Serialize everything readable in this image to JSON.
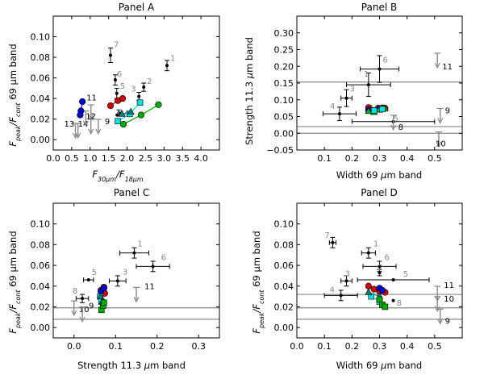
{
  "chart_data": [
    {
      "id": "A",
      "type": "scatter",
      "title": "Panel A",
      "xlabel": "F_30μm/F_18μm",
      "ylabel": "F_peak/F_cont 69 μm band",
      "xlim": [
        0,
        4.5
      ],
      "ylim": [
        -0.01,
        0.12
      ],
      "xticks": [
        "0.0",
        "0.5",
        "1.0",
        "1.5",
        "2.0",
        "2.5",
        "3.0",
        "3.5",
        "4.0"
      ],
      "yticks": [
        "0.00",
        "0.02",
        "0.04",
        "0.06",
        "0.08",
        "0.10"
      ],
      "xtickvals": [
        0,
        0.5,
        1,
        1.5,
        2,
        2.5,
        3,
        3.5,
        4
      ],
      "ytickvals": [
        0,
        0.02,
        0.04,
        0.06,
        0.08,
        0.1
      ],
      "hlines": [],
      "points": [
        {
          "label": "1",
          "x": 3.08,
          "y": 0.072,
          "xerr": 0.0,
          "yerr": 0.005,
          "color": "#000000",
          "labelcolor": "#888888",
          "dx": 4,
          "dy": -6
        },
        {
          "label": "2",
          "x": 2.45,
          "y": 0.051,
          "xerr": 0.0,
          "yerr": 0.004,
          "color": "#000000",
          "labelcolor": "#888888",
          "dx": 4,
          "dy": -4
        },
        {
          "label": "3",
          "x": 2.32,
          "y": 0.042,
          "xerr": 0.0,
          "yerr": 0.004,
          "color": "#000000",
          "labelcolor": "#888888",
          "dx": -10,
          "dy": -6
        },
        {
          "label": "5",
          "x": 1.72,
          "y": 0.045,
          "xerr": 0.0,
          "yerr": 0.005,
          "color": "#000000",
          "labelcolor": "#888888",
          "dx": 4,
          "dy": -6
        },
        {
          "label": "6",
          "x": 1.68,
          "y": 0.058,
          "xerr": 0.0,
          "yerr": 0.005,
          "color": "#000000",
          "labelcolor": "#888888",
          "dx": 2,
          "dy": -4
        },
        {
          "label": "7",
          "x": 1.55,
          "y": 0.082,
          "xerr": 0.0,
          "yerr": 0.007,
          "color": "#000000",
          "labelcolor": "#888888",
          "dx": 4,
          "dy": -10
        },
        {
          "label": "4",
          "x": 1.78,
          "y": 0.026,
          "xerr": 0.0,
          "yerr": 0.003,
          "color": "#000000",
          "labelcolor": "#888888",
          "dx": 6,
          "dy": 4
        },
        {
          "label": "8",
          "x": 1.73,
          "y": 0.024,
          "xerr": 0.0,
          "yerr": 0.0,
          "color": "#000000",
          "labelcolor": "#888888",
          "dx": 0,
          "dy": 0
        }
      ],
      "upperlimits": [
        {
          "label": "13",
          "x": 0.6,
          "y": 0.008,
          "color": "#888888",
          "dx": -14,
          "dy": -6
        },
        {
          "label": "14",
          "x": 0.67,
          "y": 0.008,
          "color": "#888888",
          "dx": 0,
          "dy": -6
        },
        {
          "label": "",
          "x": 1.02,
          "y": 0.026,
          "color": "#888888",
          "dx": 0,
          "dy": 0
        },
        {
          "label": "",
          "x": 1.02,
          "y": 0.012,
          "color": "#888888",
          "dx": 0,
          "dy": 0
        },
        {
          "label": "9",
          "x": 1.22,
          "y": 0.012,
          "color": "#888888",
          "dx": 8,
          "dy": -4
        },
        {
          "label": "12",
          "x": 0.88,
          "y": 0.02,
          "color": "#888888",
          "dx": 0,
          "dy": 0
        }
      ],
      "series": [
        {
          "name": "blue",
          "color": "#0000cc",
          "marker": "circle",
          "x": [
            0.79,
            0.75,
            0.73
          ],
          "y": [
            0.037,
            0.028,
            0.024
          ]
        },
        {
          "name": "red",
          "color": "#cc0000",
          "marker": "circle",
          "x": [
            1.55,
            1.75,
            1.88
          ],
          "y": [
            0.033,
            0.038,
            0.04
          ]
        },
        {
          "name": "cyan",
          "color": "#00e0e0",
          "marker": "square",
          "x": [
            1.75,
            2.07,
            2.35
          ],
          "y": [
            0.018,
            0.025,
            0.036
          ]
        },
        {
          "name": "teal",
          "color": "#008080",
          "marker": "triangle",
          "x": [
            1.86,
            2.1
          ],
          "y": [
            0.025,
            0.027
          ]
        },
        {
          "name": "green",
          "color": "#00aa00",
          "marker": "circle",
          "x": [
            1.9,
            2.38,
            2.85
          ],
          "y": [
            0.015,
            0.024,
            0.034
          ]
        }
      ],
      "extra_labels": [
        {
          "text": "11",
          "x": 0.9,
          "y": 0.038,
          "color": "#000000"
        }
      ]
    },
    {
      "id": "B",
      "type": "scatter",
      "title": "Panel B",
      "xlabel": "Width 69 μm band",
      "ylabel": "Strength 11.3 μm band",
      "xlim": [
        0.0,
        0.6
      ],
      "ylim": [
        -0.05,
        0.35
      ],
      "xticks": [
        "0.1",
        "0.2",
        "0.3",
        "0.4",
        "0.5"
      ],
      "yticks": [
        "−0.05",
        "0.00",
        "0.05",
        "0.10",
        "0.15",
        "0.20",
        "0.25",
        "0.30"
      ],
      "xtickvals": [
        0.1,
        0.2,
        0.3,
        0.4,
        0.5
      ],
      "ytickvals": [
        -0.05,
        0,
        0.05,
        0.1,
        0.15,
        0.2,
        0.25,
        0.3
      ],
      "hlines": [
        0.153,
        0.02,
        0.0
      ],
      "points": [
        {
          "label": "6",
          "x": 0.3,
          "y": 0.192,
          "xerr": 0.07,
          "yerr": 0.04,
          "color": "#000000",
          "labelcolor": "#888888",
          "dx": 4,
          "dy": -8
        },
        {
          "label": "1",
          "x": 0.26,
          "y": 0.145,
          "xerr": 0.08,
          "yerr": 0.035,
          "color": "#000000",
          "labelcolor": "#888888",
          "dx": -6,
          "dy": -10
        },
        {
          "label": "3",
          "x": 0.18,
          "y": 0.105,
          "xerr": 0.02,
          "yerr": 0.025,
          "color": "#000000",
          "labelcolor": "#888888",
          "dx": 4,
          "dy": -8
        },
        {
          "label": "4",
          "x": 0.155,
          "y": 0.058,
          "xerr": 0.06,
          "yerr": 0.02,
          "color": "#000000",
          "labelcolor": "#888888",
          "dx": -12,
          "dy": -6
        },
        {
          "label": "5",
          "x": 0.35,
          "y": 0.035,
          "xerr": 0.15,
          "yerr": 0.0,
          "color": "#000000",
          "labelcolor": "#888888",
          "dx": 0,
          "dy": 0
        },
        {
          "label": "2",
          "x": 0.26,
          "y": 0.068,
          "xerr": 0.0,
          "yerr": 0.0,
          "color": "#000000",
          "labelcolor": "#888888",
          "dx": 0,
          "dy": 0
        }
      ],
      "upperlimits": [
        {
          "label": "8",
          "x": 0.35,
          "y": 0.03,
          "color": "#888888",
          "dx": 6,
          "dy": 8
        },
        {
          "label": "11",
          "x": 0.51,
          "y": 0.215,
          "color": "#888888",
          "dx": 6,
          "dy": 10
        },
        {
          "label": "9",
          "x": 0.52,
          "y": 0.05,
          "color": "#888888",
          "dx": 6,
          "dy": -4
        },
        {
          "label": "10",
          "x": 0.515,
          "y": -0.02,
          "color": "#888888",
          "dx": -4,
          "dy": 8
        }
      ],
      "series": [
        {
          "name": "red",
          "color": "#cc0000",
          "marker": "circle",
          "x": [
            0.26,
            0.295,
            0.31,
            0.32
          ],
          "y": [
            0.077,
            0.075,
            0.076,
            0.075
          ]
        },
        {
          "name": "blue",
          "color": "#0000cc",
          "marker": "circle",
          "x": [
            0.26,
            0.3
          ],
          "y": [
            0.07,
            0.073
          ]
        },
        {
          "name": "green",
          "color": "#00aa00",
          "marker": "triangle",
          "x": [
            0.26,
            0.28,
            0.3,
            0.32
          ],
          "y": [
            0.066,
            0.063,
            0.07,
            0.074
          ]
        },
        {
          "name": "cyan",
          "color": "#00e0e0",
          "marker": "square",
          "x": [
            0.28,
            0.31
          ],
          "y": [
            0.068,
            0.072
          ]
        }
      ],
      "extra_labels": []
    },
    {
      "id": "C",
      "type": "scatter",
      "title": "Panel C",
      "xlabel": "Strength 11.3 μm band",
      "ylabel": "F_peak/F_cont 69 μm band",
      "xlim": [
        -0.05,
        0.35
      ],
      "ylim": [
        -0.01,
        0.12
      ],
      "xticks": [
        "0.0",
        "0.1",
        "0.2",
        "0.3"
      ],
      "yticks": [
        "0.00",
        "0.02",
        "0.04",
        "0.06",
        "0.08",
        "0.10"
      ],
      "xtickvals": [
        0,
        0.1,
        0.2,
        0.3
      ],
      "ytickvals": [
        0,
        0.02,
        0.04,
        0.06,
        0.08,
        0.1
      ],
      "hlines": [
        0.019,
        0.008
      ],
      "points": [
        {
          "label": "1",
          "x": 0.145,
          "y": 0.072,
          "xerr": 0.035,
          "yerr": 0.005,
          "color": "#000000",
          "labelcolor": "#888888",
          "dx": 4,
          "dy": -8
        },
        {
          "label": "6",
          "x": 0.19,
          "y": 0.059,
          "xerr": 0.04,
          "yerr": 0.005,
          "color": "#000000",
          "labelcolor": "#888888",
          "dx": 10,
          "dy": -8
        },
        {
          "label": "3",
          "x": 0.105,
          "y": 0.045,
          "xerr": 0.02,
          "yerr": 0.005,
          "color": "#000000",
          "labelcolor": "#888888",
          "dx": 6,
          "dy": -8
        },
        {
          "label": "5",
          "x": 0.035,
          "y": 0.046,
          "xerr": 0.012,
          "yerr": 0.0,
          "color": "#000000",
          "labelcolor": "#888888",
          "dx": 4,
          "dy": -6
        },
        {
          "label": "8",
          "x": 0.02,
          "y": 0.028,
          "xerr": 0.015,
          "yerr": 0.004,
          "color": "#000000",
          "labelcolor": "#888888",
          "dx": -12,
          "dy": -6
        }
      ],
      "upperlimits": [
        {
          "label": "11",
          "x": 0.15,
          "y": 0.031,
          "color": "#888888",
          "dx": 10,
          "dy": -8
        },
        {
          "label": "10",
          "x": 0.0,
          "y": 0.018,
          "color": "#888888",
          "dx": 6,
          "dy": 4
        },
        {
          "label": "9",
          "x": 0.02,
          "y": 0.012,
          "color": "#888888",
          "dx": 8,
          "dy": -8
        }
      ],
      "series": [
        {
          "name": "red",
          "color": "#cc0000",
          "marker": "circle",
          "x": [
            0.065,
            0.072,
            0.074
          ],
          "y": [
            0.036,
            0.039,
            0.033
          ]
        },
        {
          "name": "blue",
          "color": "#0000cc",
          "marker": "circle",
          "x": [
            0.065,
            0.072
          ],
          "y": [
            0.035,
            0.038
          ]
        },
        {
          "name": "cyan",
          "color": "#00e0e0",
          "marker": "square",
          "x": [
            0.063,
            0.066
          ],
          "y": [
            0.03,
            0.025
          ]
        },
        {
          "name": "teal",
          "color": "#008080",
          "marker": "triangle",
          "x": [
            0.064,
            0.068
          ],
          "y": [
            0.03,
            0.025
          ]
        },
        {
          "name": "green",
          "color": "#00aa00",
          "marker": "square",
          "x": [
            0.066,
            0.07,
            0.072
          ],
          "y": [
            0.017,
            0.021,
            0.024
          ]
        }
      ],
      "extra_labels": []
    },
    {
      "id": "D",
      "type": "scatter",
      "title": "Panel D",
      "xlabel": "Width 69 μm band",
      "ylabel": "F_peak/F_cont 69 μm band",
      "xlim": [
        0.0,
        0.6
      ],
      "ylim": [
        -0.01,
        0.12
      ],
      "xticks": [
        "0.0",
        "0.1",
        "0.2",
        "0.3",
        "0.4",
        "0.5"
      ],
      "yticks": [
        "0.00",
        "0.02",
        "0.04",
        "0.06",
        "0.08",
        "0.10"
      ],
      "xtickvals": [
        0,
        0.1,
        0.2,
        0.3,
        0.4,
        0.5
      ],
      "ytickvals": [
        0,
        0.02,
        0.04,
        0.06,
        0.08,
        0.1
      ],
      "hlines": [
        0.032,
        0.019,
        0.008
      ],
      "points": [
        {
          "label": "7",
          "x": 0.13,
          "y": 0.082,
          "xerr": 0.012,
          "yerr": 0.005,
          "color": "#000000",
          "labelcolor": "#888888",
          "dx": -10,
          "dy": -6
        },
        {
          "label": "1",
          "x": 0.26,
          "y": 0.072,
          "xerr": 0.025,
          "yerr": 0.005,
          "color": "#000000",
          "labelcolor": "#888888",
          "dx": 6,
          "dy": -8
        },
        {
          "label": "6",
          "x": 0.3,
          "y": 0.059,
          "xerr": 0.06,
          "yerr": 0.005,
          "color": "#000000",
          "labelcolor": "#888888",
          "dx": 6,
          "dy": -8
        },
        {
          "label": "2",
          "x": 0.3,
          "y": 0.053,
          "xerr": 0.0,
          "yerr": 0.003,
          "color": "#000000",
          "labelcolor": "#888888",
          "dx": -2,
          "dy": -3
        },
        {
          "label": "3",
          "x": 0.18,
          "y": 0.045,
          "xerr": 0.02,
          "yerr": 0.005,
          "color": "#000000",
          "labelcolor": "#888888",
          "dx": -2,
          "dy": -6
        },
        {
          "label": "5",
          "x": 0.35,
          "y": 0.046,
          "xerr": 0.13,
          "yerr": 0.0,
          "color": "#000000",
          "labelcolor": "#888888",
          "dx": 12,
          "dy": -4
        },
        {
          "label": "4",
          "x": 0.16,
          "y": 0.031,
          "xerr": 0.06,
          "yerr": 0.005,
          "color": "#000000",
          "labelcolor": "#888888",
          "dx": -14,
          "dy": -4
        },
        {
          "label": "8",
          "x": 0.35,
          "y": 0.026,
          "xerr": 0.0,
          "yerr": 0.0,
          "color": "#000000",
          "labelcolor": "#888888",
          "dx": 4,
          "dy": 6
        }
      ],
      "upperlimits": [
        {
          "label": "11",
          "x": 0.51,
          "y": 0.032,
          "color": "#888888",
          "dx": 8,
          "dy": -8
        },
        {
          "label": "10",
          "x": 0.51,
          "y": 0.022,
          "color": "#888888",
          "dx": 8,
          "dy": -4
        },
        {
          "label": "9",
          "x": 0.52,
          "y": 0.01,
          "color": "#888888",
          "dx": 6,
          "dy": 8
        }
      ],
      "series": [
        {
          "name": "red",
          "color": "#cc0000",
          "marker": "circle",
          "x": [
            0.26,
            0.28,
            0.3,
            0.32
          ],
          "y": [
            0.04,
            0.037,
            0.035,
            0.034
          ]
        },
        {
          "name": "blue",
          "color": "#0000cc",
          "marker": "circle",
          "x": [
            0.3,
            0.31
          ],
          "y": [
            0.038,
            0.036
          ]
        },
        {
          "name": "cyan",
          "color": "#00e0e0",
          "marker": "square",
          "x": [
            0.27,
            0.3
          ],
          "y": [
            0.03,
            0.025
          ]
        },
        {
          "name": "teal",
          "color": "#008080",
          "marker": "triangle",
          "x": [
            0.26,
            0.3
          ],
          "y": [
            0.034,
            0.03
          ]
        },
        {
          "name": "green",
          "color": "#00aa00",
          "marker": "square",
          "x": [
            0.3,
            0.31,
            0.32
          ],
          "y": [
            0.027,
            0.022,
            0.02
          ]
        }
      ],
      "extra_labels": []
    }
  ]
}
